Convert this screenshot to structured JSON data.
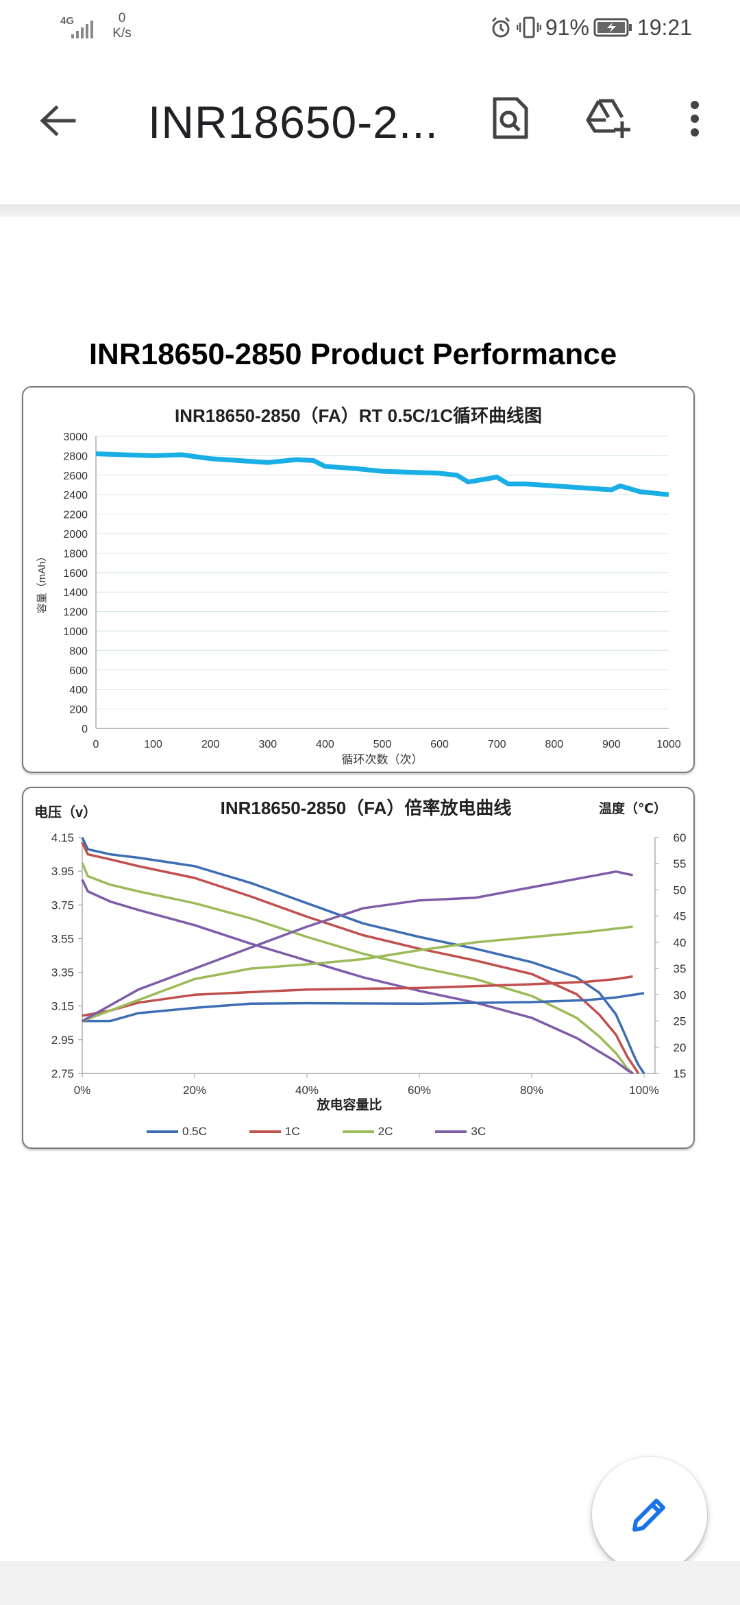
{
  "status_bar": {
    "network_type": "4G",
    "speed_value": "0",
    "speed_unit": "K/s",
    "battery": "91%",
    "time": "19:21"
  },
  "app_bar": {
    "title": "INR18650-2...",
    "icons": [
      "arrow-back-icon",
      "find-in-page-icon",
      "add-to-drive-icon",
      "more-vert-icon"
    ]
  },
  "document": {
    "heading": "INR18650-2850 Product Performance"
  },
  "chart_data": [
    {
      "type": "line",
      "title": "INR18650-2850（FA）RT 0.5C/1C循环曲线图",
      "xlabel": "循环次数（次）",
      "ylabel": "容量（mAh）",
      "xlim": [
        0,
        1000
      ],
      "ylim": [
        0,
        3000
      ],
      "xticks": [
        "0",
        "100",
        "200",
        "300",
        "400",
        "500",
        "600",
        "700",
        "800",
        "900",
        "1000"
      ],
      "yticks": [
        "0",
        "200",
        "400",
        "600",
        "800",
        "1000",
        "1200",
        "1400",
        "1600",
        "1800",
        "2000",
        "2200",
        "2400",
        "2600",
        "2800",
        "3000"
      ],
      "grid": true,
      "series": [
        {
          "color": "#1aaee6",
          "x": [
            0,
            50,
            100,
            150,
            200,
            250,
            300,
            350,
            380,
            400,
            450,
            500,
            550,
            600,
            630,
            650,
            680,
            700,
            720,
            750,
            800,
            850,
            900,
            915,
            950,
            1000
          ],
          "y": [
            2820,
            2810,
            2800,
            2810,
            2770,
            2750,
            2730,
            2760,
            2750,
            2690,
            2670,
            2640,
            2630,
            2620,
            2600,
            2530,
            2560,
            2580,
            2510,
            2510,
            2490,
            2470,
            2450,
            2490,
            2430,
            2400
          ]
        }
      ]
    },
    {
      "type": "line",
      "title": "INR18650-2850（FA）倍率放电曲线",
      "xlabel": "放电容量比",
      "ylabel": "电压（v）",
      "y2label": "温度（℃）",
      "xlim": [
        0,
        100
      ],
      "ylim": [
        2.75,
        4.15
      ],
      "y2lim": [
        15,
        60
      ],
      "xticks": [
        "0%",
        "20%",
        "40%",
        "60%",
        "80%",
        "100%"
      ],
      "yticks": [
        "2.75",
        "2.95",
        "3.15",
        "3.35",
        "3.55",
        "3.75",
        "3.95",
        "4.15"
      ],
      "y2ticks": [
        "15",
        "20",
        "25",
        "30",
        "35",
        "40",
        "45",
        "50",
        "55",
        "60"
      ],
      "legend_position": "bottom",
      "series": [
        {
          "name": "0.5C",
          "color": "#3d6db3",
          "axis": "voltage",
          "x": [
            0,
            1,
            5,
            10,
            20,
            30,
            40,
            50,
            60,
            70,
            80,
            88,
            92,
            95,
            97,
            98,
            99,
            100
          ],
          "y": [
            4.15,
            4.08,
            4.05,
            4.03,
            3.98,
            3.88,
            3.76,
            3.64,
            3.56,
            3.49,
            3.41,
            3.32,
            3.23,
            3.1,
            2.95,
            2.87,
            2.8,
            2.75
          ]
        },
        {
          "name": "1C",
          "color": "#c0504d",
          "axis": "voltage",
          "x": [
            0,
            1,
            5,
            10,
            20,
            30,
            40,
            50,
            60,
            70,
            80,
            88,
            92,
            95,
            97,
            98,
            99
          ],
          "y": [
            4.12,
            4.05,
            4.02,
            3.98,
            3.91,
            3.8,
            3.68,
            3.57,
            3.49,
            3.42,
            3.34,
            3.22,
            3.1,
            2.98,
            2.85,
            2.8,
            2.75
          ]
        },
        {
          "name": "2C",
          "color": "#9bbb59",
          "axis": "voltage",
          "x": [
            0,
            1,
            5,
            10,
            20,
            30,
            40,
            50,
            60,
            70,
            80,
            88,
            92,
            95,
            97,
            98
          ],
          "y": [
            4.0,
            3.92,
            3.87,
            3.83,
            3.76,
            3.67,
            3.56,
            3.46,
            3.38,
            3.31,
            3.21,
            3.08,
            2.97,
            2.87,
            2.78,
            2.75
          ]
        },
        {
          "name": "3C",
          "color": "#7e5ca8",
          "axis": "voltage",
          "x": [
            0,
            1,
            5,
            10,
            20,
            30,
            40,
            50,
            60,
            70,
            80,
            88,
            92,
            95,
            97,
            98
          ],
          "y": [
            3.9,
            3.83,
            3.77,
            3.72,
            3.63,
            3.52,
            3.42,
            3.32,
            3.24,
            3.17,
            3.08,
            2.96,
            2.88,
            2.82,
            2.77,
            2.75
          ]
        },
        {
          "name": "0.5C",
          "color": "#3d6db3",
          "axis": "temperature",
          "x": [
            0,
            5,
            10,
            20,
            30,
            40,
            60,
            80,
            90,
            95,
            100
          ],
          "y": [
            25,
            25,
            26.5,
            27.5,
            28.3,
            28.4,
            28.3,
            28.6,
            29,
            29.5,
            30.3
          ]
        },
        {
          "name": "1C",
          "color": "#c0504d",
          "axis": "temperature",
          "x": [
            0,
            5,
            10,
            20,
            30,
            40,
            60,
            80,
            90,
            95,
            98
          ],
          "y": [
            26,
            27,
            28.5,
            30,
            30.5,
            31,
            31.3,
            32,
            32.5,
            33,
            33.5
          ]
        },
        {
          "name": "2C",
          "color": "#9bbb59",
          "axis": "temperature",
          "x": [
            0,
            5,
            10,
            20,
            30,
            40,
            50,
            60,
            70,
            80,
            90,
            94,
            98
          ],
          "y": [
            25,
            27,
            29,
            33,
            35,
            35.8,
            36.8,
            38.5,
            40,
            41,
            42,
            42.5,
            43
          ]
        },
        {
          "name": "3C",
          "color": "#7e5ca8",
          "axis": "temperature",
          "x": [
            0,
            5,
            10,
            15,
            20,
            30,
            40,
            50,
            60,
            70,
            80,
            90,
            95,
            98
          ],
          "y": [
            25,
            28,
            31,
            33,
            35,
            39,
            43,
            46.5,
            48,
            48.5,
            50.5,
            52.5,
            53.5,
            52.8
          ]
        }
      ]
    }
  ]
}
